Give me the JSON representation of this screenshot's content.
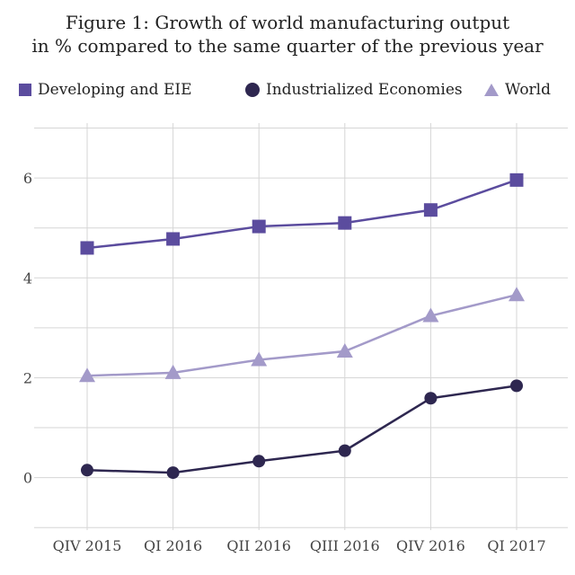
{
  "title_line1": "Figure 1: Growth of world manufacturing output",
  "title_line2": "in % compared to the same quarter of the previous year",
  "chart_data": {
    "type": "line",
    "title": "Figure 1: Growth of world manufacturing output in % compared to the same quarter of the previous year",
    "xlabel": "",
    "ylabel": "",
    "categories": [
      "QIV 2015",
      "QI 2016",
      "QII 2016",
      "QIII 2016",
      "QIV 2016",
      "QI 2017"
    ],
    "ylim": [
      -1.05,
      7.1
    ],
    "yticks": [
      0,
      2,
      4,
      6
    ],
    "grid": true,
    "legend_position": "top",
    "series": [
      {
        "name": "Developing and EIE",
        "marker": "square",
        "color": "#5b4c9e",
        "values": [
          4.6,
          4.78,
          5.03,
          5.1,
          5.36,
          5.96
        ]
      },
      {
        "name": "Industrialized Economies",
        "marker": "circle",
        "color": "#2e2750",
        "values": [
          0.15,
          0.1,
          0.33,
          0.54,
          1.59,
          1.84
        ]
      },
      {
        "name": "World",
        "marker": "triangle",
        "color": "#a39ac9",
        "values": [
          2.04,
          2.1,
          2.36,
          2.53,
          3.24,
          3.66
        ]
      }
    ]
  }
}
